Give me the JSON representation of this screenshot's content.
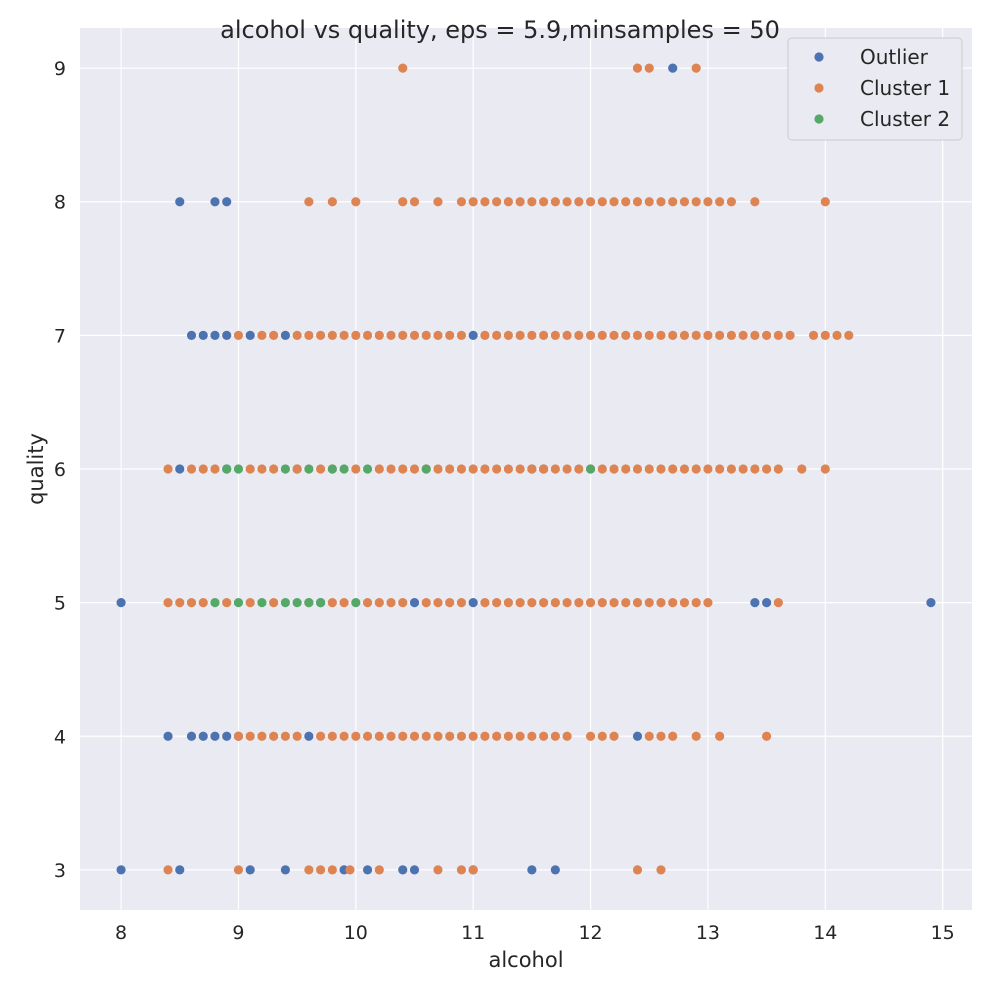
{
  "chart_data": {
    "type": "scatter",
    "title": "alcohol vs quality, eps = 5.9,minsamples = 50",
    "xlabel": "alcohol",
    "ylabel": "quality",
    "xlim": [
      7.65,
      15.25
    ],
    "ylim": [
      2.7,
      9.3
    ],
    "xticks": [
      8,
      9,
      10,
      11,
      12,
      13,
      14,
      15
    ],
    "yticks": [
      3,
      4,
      5,
      6,
      7,
      8,
      9
    ],
    "grid": true,
    "legend_position": "top-right",
    "background_color": "#eaeaf2",
    "series": [
      {
        "name": "Outlier",
        "color": "#4c72b0",
        "points": [
          [
            8.0,
            3
          ],
          [
            8.5,
            3
          ],
          [
            9.1,
            3
          ],
          [
            9.4,
            3
          ],
          [
            9.9,
            3
          ],
          [
            10.1,
            3
          ],
          [
            10.4,
            3
          ],
          [
            10.5,
            3
          ],
          [
            11.0,
            3
          ],
          [
            11.5,
            3
          ],
          [
            11.7,
            3
          ],
          [
            8.4,
            4
          ],
          [
            8.6,
            4
          ],
          [
            8.7,
            4
          ],
          [
            8.8,
            4
          ],
          [
            8.9,
            4
          ],
          [
            9.0,
            4
          ],
          [
            9.6,
            4
          ],
          [
            12.4,
            4
          ],
          [
            8.0,
            5
          ],
          [
            9.7,
            5
          ],
          [
            10.5,
            5
          ],
          [
            11.0,
            5
          ],
          [
            13.4,
            5
          ],
          [
            13.5,
            5
          ],
          [
            14.9,
            5
          ],
          [
            8.5,
            6
          ],
          [
            8.9,
            6
          ],
          [
            9.5,
            6
          ],
          [
            11.5,
            6
          ],
          [
            11.6,
            6
          ],
          [
            8.6,
            7
          ],
          [
            8.7,
            7
          ],
          [
            8.8,
            7
          ],
          [
            8.9,
            7
          ],
          [
            9.1,
            7
          ],
          [
            9.4,
            7
          ],
          [
            11.0,
            7
          ],
          [
            8.5,
            8
          ],
          [
            8.8,
            8
          ],
          [
            8.9,
            8
          ],
          [
            12.7,
            9
          ]
        ]
      },
      {
        "name": "Cluster 1",
        "color": "#dd8452",
        "points": [
          [
            8.4,
            3
          ],
          [
            9.0,
            3
          ],
          [
            9.6,
            3
          ],
          [
            9.7,
            3
          ],
          [
            9.8,
            3
          ],
          [
            9.95,
            3
          ],
          [
            10.2,
            3
          ],
          [
            10.7,
            3
          ],
          [
            10.9,
            3
          ],
          [
            11.0,
            3
          ],
          [
            12.4,
            3
          ],
          [
            12.6,
            3
          ],
          [
            9.0,
            4
          ],
          [
            9.1,
            4
          ],
          [
            9.2,
            4
          ],
          [
            9.3,
            4
          ],
          [
            9.4,
            4
          ],
          [
            9.5,
            4
          ],
          [
            9.7,
            4
          ],
          [
            9.8,
            4
          ],
          [
            9.9,
            4
          ],
          [
            10.0,
            4
          ],
          [
            10.1,
            4
          ],
          [
            10.2,
            4
          ],
          [
            10.3,
            4
          ],
          [
            10.4,
            4
          ],
          [
            10.5,
            4
          ],
          [
            10.6,
            4
          ],
          [
            10.7,
            4
          ],
          [
            10.8,
            4
          ],
          [
            10.9,
            4
          ],
          [
            11.0,
            4
          ],
          [
            11.1,
            4
          ],
          [
            11.2,
            4
          ],
          [
            11.3,
            4
          ],
          [
            11.4,
            4
          ],
          [
            11.5,
            4
          ],
          [
            11.6,
            4
          ],
          [
            11.7,
            4
          ],
          [
            11.8,
            4
          ],
          [
            12.0,
            4
          ],
          [
            12.1,
            4
          ],
          [
            12.2,
            4
          ],
          [
            12.5,
            4
          ],
          [
            12.6,
            4
          ],
          [
            12.7,
            4
          ],
          [
            12.9,
            4
          ],
          [
            13.1,
            4
          ],
          [
            13.5,
            4
          ],
          [
            8.4,
            5
          ],
          [
            8.5,
            5
          ],
          [
            8.6,
            5
          ],
          [
            8.7,
            5
          ],
          [
            8.9,
            5
          ],
          [
            9.1,
            5
          ],
          [
            9.3,
            5
          ],
          [
            9.6,
            5
          ],
          [
            9.8,
            5
          ],
          [
            9.9,
            5
          ],
          [
            10.1,
            5
          ],
          [
            10.2,
            5
          ],
          [
            10.3,
            5
          ],
          [
            10.4,
            5
          ],
          [
            10.6,
            5
          ],
          [
            10.7,
            5
          ],
          [
            10.8,
            5
          ],
          [
            10.9,
            5
          ],
          [
            11.1,
            5
          ],
          [
            11.2,
            5
          ],
          [
            11.3,
            5
          ],
          [
            11.4,
            5
          ],
          [
            11.5,
            5
          ],
          [
            11.6,
            5
          ],
          [
            11.7,
            5
          ],
          [
            11.8,
            5
          ],
          [
            11.9,
            5
          ],
          [
            12.0,
            5
          ],
          [
            12.1,
            5
          ],
          [
            12.2,
            5
          ],
          [
            12.3,
            5
          ],
          [
            12.4,
            5
          ],
          [
            12.5,
            5
          ],
          [
            12.6,
            5
          ],
          [
            12.7,
            5
          ],
          [
            12.8,
            5
          ],
          [
            12.9,
            5
          ],
          [
            13.0,
            5
          ],
          [
            13.6,
            5
          ],
          [
            8.4,
            6
          ],
          [
            8.6,
            6
          ],
          [
            8.7,
            6
          ],
          [
            8.8,
            6
          ],
          [
            9.1,
            6
          ],
          [
            9.2,
            6
          ],
          [
            9.3,
            6
          ],
          [
            9.5,
            6
          ],
          [
            9.7,
            6
          ],
          [
            9.8,
            6
          ],
          [
            10.0,
            6
          ],
          [
            10.2,
            6
          ],
          [
            10.3,
            6
          ],
          [
            10.4,
            6
          ],
          [
            10.5,
            6
          ],
          [
            10.6,
            6
          ],
          [
            10.7,
            6
          ],
          [
            10.8,
            6
          ],
          [
            10.9,
            6
          ],
          [
            11.0,
            6
          ],
          [
            11.1,
            6
          ],
          [
            11.2,
            6
          ],
          [
            11.3,
            6
          ],
          [
            11.4,
            6
          ],
          [
            11.5,
            6
          ],
          [
            11.6,
            6
          ],
          [
            11.7,
            6
          ],
          [
            11.8,
            6
          ],
          [
            11.9,
            6
          ],
          [
            12.0,
            6
          ],
          [
            12.1,
            6
          ],
          [
            12.2,
            6
          ],
          [
            12.3,
            6
          ],
          [
            12.4,
            6
          ],
          [
            12.5,
            6
          ],
          [
            12.6,
            6
          ],
          [
            12.7,
            6
          ],
          [
            12.8,
            6
          ],
          [
            12.9,
            6
          ],
          [
            13.0,
            6
          ],
          [
            13.1,
            6
          ],
          [
            13.2,
            6
          ],
          [
            13.3,
            6
          ],
          [
            13.4,
            6
          ],
          [
            13.5,
            6
          ],
          [
            13.6,
            6
          ],
          [
            13.8,
            6
          ],
          [
            14.0,
            6
          ],
          [
            9.0,
            7
          ],
          [
            9.2,
            7
          ],
          [
            9.3,
            7
          ],
          [
            9.5,
            7
          ],
          [
            9.6,
            7
          ],
          [
            9.7,
            7
          ],
          [
            9.8,
            7
          ],
          [
            9.9,
            7
          ],
          [
            10.0,
            7
          ],
          [
            10.1,
            7
          ],
          [
            10.2,
            7
          ],
          [
            10.3,
            7
          ],
          [
            10.4,
            7
          ],
          [
            10.5,
            7
          ],
          [
            10.6,
            7
          ],
          [
            10.7,
            7
          ],
          [
            10.8,
            7
          ],
          [
            10.9,
            7
          ],
          [
            11.1,
            7
          ],
          [
            11.2,
            7
          ],
          [
            11.3,
            7
          ],
          [
            11.4,
            7
          ],
          [
            11.5,
            7
          ],
          [
            11.6,
            7
          ],
          [
            11.7,
            7
          ],
          [
            11.8,
            7
          ],
          [
            11.9,
            7
          ],
          [
            12.0,
            7
          ],
          [
            12.1,
            7
          ],
          [
            12.2,
            7
          ],
          [
            12.3,
            7
          ],
          [
            12.4,
            7
          ],
          [
            12.5,
            7
          ],
          [
            12.6,
            7
          ],
          [
            12.7,
            7
          ],
          [
            12.8,
            7
          ],
          [
            12.9,
            7
          ],
          [
            13.0,
            7
          ],
          [
            13.1,
            7
          ],
          [
            13.2,
            7
          ],
          [
            13.3,
            7
          ],
          [
            13.4,
            7
          ],
          [
            13.5,
            7
          ],
          [
            13.6,
            7
          ],
          [
            13.7,
            7
          ],
          [
            13.9,
            7
          ],
          [
            14.0,
            7
          ],
          [
            14.1,
            7
          ],
          [
            14.2,
            7
          ],
          [
            9.6,
            8
          ],
          [
            9.8,
            8
          ],
          [
            10.0,
            8
          ],
          [
            10.4,
            8
          ],
          [
            10.5,
            8
          ],
          [
            10.7,
            8
          ],
          [
            10.9,
            8
          ],
          [
            11.0,
            8
          ],
          [
            11.1,
            8
          ],
          [
            11.2,
            8
          ],
          [
            11.3,
            8
          ],
          [
            11.4,
            8
          ],
          [
            11.5,
            8
          ],
          [
            11.6,
            8
          ],
          [
            11.7,
            8
          ],
          [
            11.8,
            8
          ],
          [
            11.9,
            8
          ],
          [
            12.0,
            8
          ],
          [
            12.1,
            8
          ],
          [
            12.2,
            8
          ],
          [
            12.3,
            8
          ],
          [
            12.4,
            8
          ],
          [
            12.5,
            8
          ],
          [
            12.6,
            8
          ],
          [
            12.7,
            8
          ],
          [
            12.8,
            8
          ],
          [
            12.9,
            8
          ],
          [
            13.0,
            8
          ],
          [
            13.1,
            8
          ],
          [
            13.2,
            8
          ],
          [
            13.4,
            8
          ],
          [
            14.0,
            8
          ],
          [
            10.4,
            9
          ],
          [
            12.4,
            9
          ],
          [
            12.5,
            9
          ],
          [
            12.9,
            9
          ]
        ]
      },
      {
        "name": "Cluster 2",
        "color": "#55a868",
        "points": [
          [
            8.8,
            5
          ],
          [
            9.0,
            5
          ],
          [
            9.2,
            5
          ],
          [
            9.4,
            5
          ],
          [
            9.5,
            5
          ],
          [
            9.6,
            5
          ],
          [
            9.7,
            5
          ],
          [
            10.0,
            5
          ],
          [
            8.9,
            6
          ],
          [
            9.0,
            6
          ],
          [
            9.4,
            6
          ],
          [
            9.6,
            6
          ],
          [
            9.8,
            6
          ],
          [
            9.9,
            6
          ],
          [
            10.1,
            6
          ],
          [
            10.6,
            6
          ],
          [
            12.0,
            6
          ]
        ]
      }
    ]
  }
}
